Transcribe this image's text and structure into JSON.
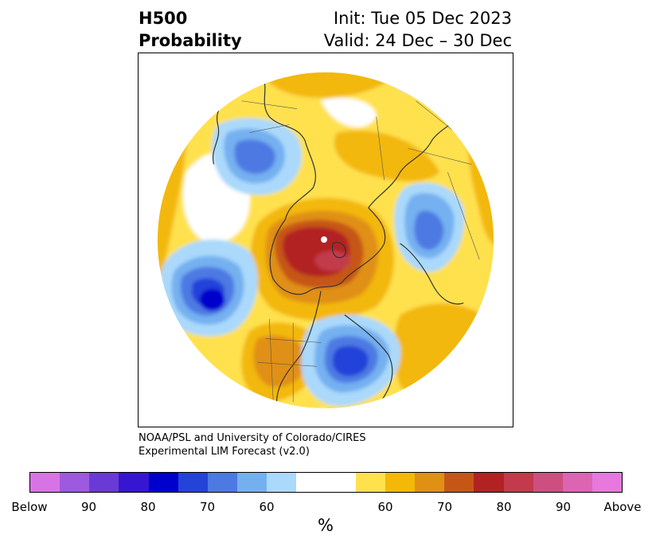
{
  "header": {
    "var_line1": "H500",
    "var_line2": "Probability",
    "init_line": "Init: Tue 05 Dec 2023",
    "valid_line": "Valid: 24 Dec – 30 Dec"
  },
  "credit": {
    "line1": "NOAA/PSL and University of Colorado/CIRES",
    "line2": "Experimental LIM Forecast (v2.0)"
  },
  "colorbar": {
    "colors": [
      "#d873e6",
      "#9d59e0",
      "#6a3ad6",
      "#3716d2",
      "#0000cd",
      "#2443d9",
      "#4d79e3",
      "#74b0f0",
      "#aad9fb",
      "#ffffff",
      "#ffffff",
      "#ffe14e",
      "#f3b808",
      "#e09014",
      "#c65616",
      "#b22222",
      "#c23a4c",
      "#cc4f80",
      "#dd64b2",
      "#e877de"
    ],
    "ticks": [
      "Below",
      "90",
      "80",
      "70",
      "60",
      "60",
      "70",
      "80",
      "90",
      "Above"
    ],
    "unit": "%"
  },
  "map": {
    "background_color": "#ffffff",
    "coastline_color": "#333333"
  }
}
